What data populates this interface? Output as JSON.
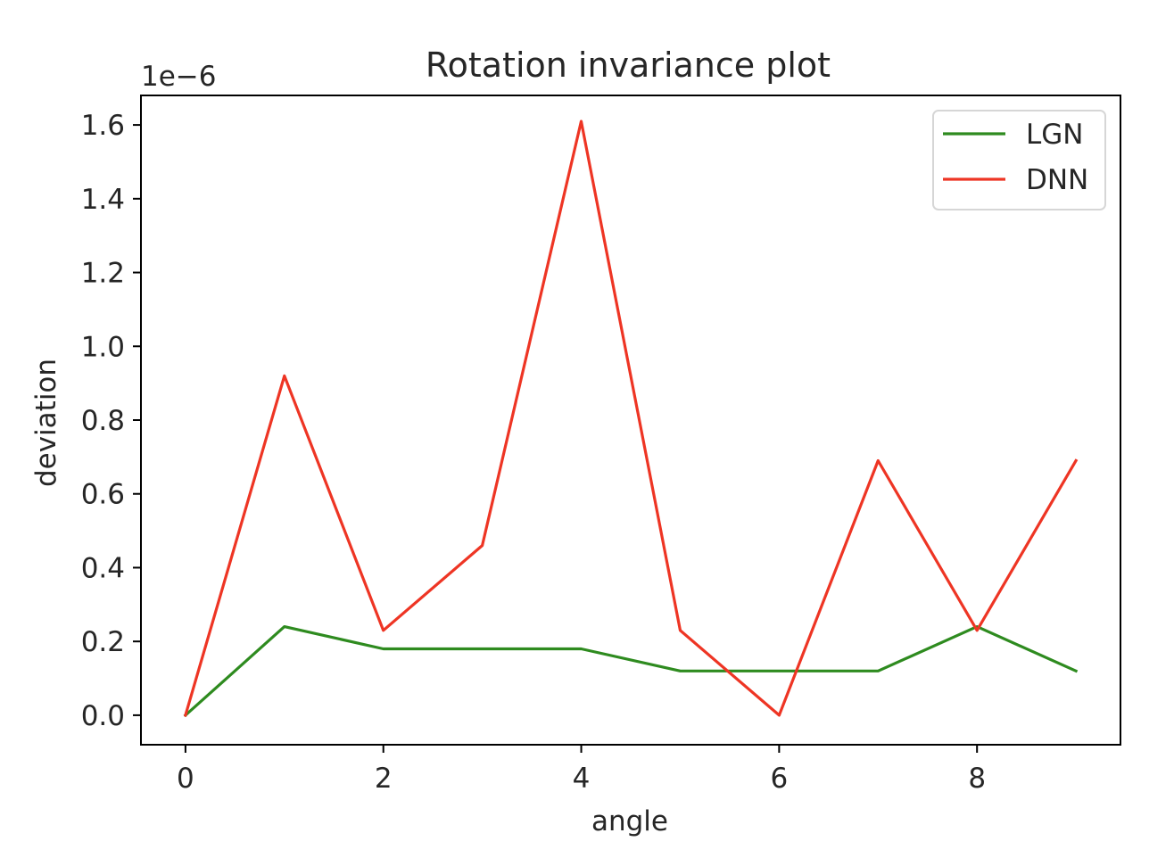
{
  "chart_data": {
    "type": "line",
    "title": "Rotation invariance plot",
    "xlabel": "angle",
    "ylabel": "deviation",
    "offset_text": "1e−6",
    "x": [
      0,
      1,
      2,
      3,
      4,
      5,
      6,
      7,
      8,
      9
    ],
    "xlim": [
      -0.45,
      9.45
    ],
    "ylim": [
      -0.08,
      1.68
    ],
    "xticks": [
      0,
      2,
      4,
      6,
      8
    ],
    "xtick_labels": [
      "0",
      "2",
      "4",
      "6",
      "8"
    ],
    "yticks": [
      0.0,
      0.2,
      0.4,
      0.6,
      0.8,
      1.0,
      1.2,
      1.4,
      1.6
    ],
    "ytick_labels": [
      "0.0",
      "0.2",
      "0.4",
      "0.6",
      "0.8",
      "1.0",
      "1.2",
      "1.4",
      "1.6"
    ],
    "grid": false,
    "legend_position": "top-right",
    "series": [
      {
        "name": "LGN",
        "color": "#2e8b1f",
        "values": [
          0.0,
          0.24,
          0.18,
          0.18,
          0.18,
          0.12,
          0.12,
          0.12,
          0.24,
          0.12
        ]
      },
      {
        "name": "DNN",
        "color": "#ee3524",
        "values": [
          0.0,
          0.92,
          0.23,
          0.46,
          1.61,
          0.23,
          0.0,
          0.69,
          0.23,
          0.69
        ]
      }
    ]
  }
}
